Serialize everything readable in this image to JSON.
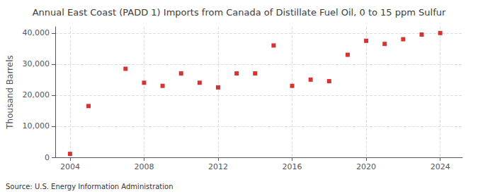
{
  "chart_data": {
    "type": "scatter",
    "title": "Annual East Coast (PADD 1) Imports from Canada of Distillate Fuel Oil, 0 to 15 ppm Sulfur",
    "ylabel": "Thousand Barrels",
    "annotation": "Source: U.S. Energy Information Administration",
    "x": [
      2004,
      2005,
      2007,
      2008,
      2009,
      2010,
      2011,
      2012,
      2013,
      2014,
      2015,
      2016,
      2017,
      2018,
      2019,
      2020,
      2021,
      2022,
      2023,
      2024
    ],
    "values": [
      1100,
      16500,
      28500,
      24000,
      23000,
      27000,
      24000,
      22500,
      27000,
      27000,
      36000,
      23000,
      25000,
      24500,
      33000,
      37500,
      36500,
      38000,
      39500,
      40000
    ],
    "color": "#cc0000",
    "marker": "square",
    "xlim": [
      2003.2,
      2025.2
    ],
    "xticks": [
      2004,
      2008,
      2012,
      2016,
      2020,
      2024
    ],
    "ylim": [
      0,
      42000
    ],
    "yticks": [
      0,
      {
        "value": 10000,
        "label": "10,000"
      },
      {
        "value": 20000,
        "label": "20,000"
      },
      {
        "value": 30000,
        "label": "30,000"
      },
      {
        "value": 40000,
        "label": "40,000"
      }
    ],
    "grid": true
  }
}
